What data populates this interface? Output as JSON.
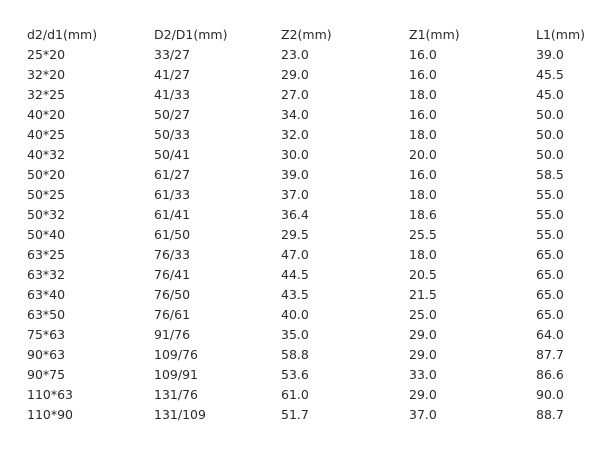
{
  "table": {
    "headers": [
      "d2/d1(mm)",
      "D2/D1(mm)",
      "Z2(mm)",
      "Z1(mm)",
      "L1(mm)"
    ],
    "rows": [
      [
        "25*20",
        "33/27",
        "23.0",
        "16.0",
        "39.0"
      ],
      [
        "32*20",
        "41/27",
        "29.0",
        "16.0",
        "45.5"
      ],
      [
        "32*25",
        "41/33",
        "27.0",
        "18.0",
        "45.0"
      ],
      [
        "40*20",
        "50/27",
        "34.0",
        "16.0",
        "50.0"
      ],
      [
        "40*25",
        "50/33",
        "32.0",
        "18.0",
        "50.0"
      ],
      [
        "40*32",
        "50/41",
        "30.0",
        "20.0",
        "50.0"
      ],
      [
        "50*20",
        "61/27",
        "39.0",
        "16.0",
        "58.5"
      ],
      [
        "50*25",
        "61/33",
        "37.0",
        "18.0",
        "55.0"
      ],
      [
        "50*32",
        "61/41",
        "36.4",
        "18.6",
        "55.0"
      ],
      [
        "50*40",
        "61/50",
        "29.5",
        "25.5",
        "55.0"
      ],
      [
        "63*25",
        "76/33",
        "47.0",
        "18.0",
        "65.0"
      ],
      [
        "63*32",
        "76/41",
        "44.5",
        "20.5",
        "65.0"
      ],
      [
        "63*40",
        "76/50",
        "43.5",
        "21.5",
        "65.0"
      ],
      [
        "63*50",
        "76/61",
        "40.0",
        "25.0",
        "65.0"
      ],
      [
        "75*63",
        "91/76",
        "35.0",
        "29.0",
        "64.0"
      ],
      [
        "90*63",
        "109/76",
        "58.8",
        "29.0",
        "87.7"
      ],
      [
        "90*75",
        "109/91",
        "53.6",
        "33.0",
        "86.6"
      ],
      [
        "110*63",
        "131/76",
        "61.0",
        "29.0",
        "90.0"
      ],
      [
        "110*90",
        "131/109",
        "51.7",
        "37.0",
        "88.7"
      ]
    ]
  }
}
